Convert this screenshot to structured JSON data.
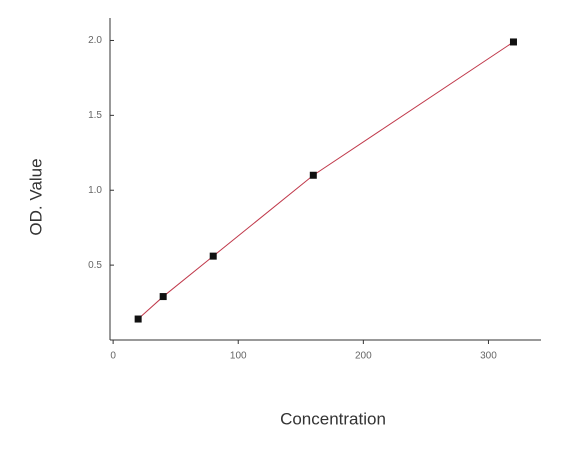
{
  "chart_data": {
    "type": "line",
    "xlabel": "Concentration",
    "ylabel": "OD. Value",
    "x": [
      20,
      40,
      80,
      160,
      320
    ],
    "series": [
      {
        "values": [
          0.14,
          0.29,
          0.56,
          1.1,
          1.99
        ],
        "color": "#c0394b",
        "marker_color": "#111111"
      }
    ],
    "xlim": [
      -2.5,
      342
    ],
    "xticks": [
      0,
      100,
      200,
      300
    ],
    "ylim": [
      0,
      2.15
    ],
    "yticks": [
      0.5,
      {
        "value": 1,
        "label": "1.0"
      },
      1.5,
      {
        "value": 2,
        "label": "2.0"
      }
    ]
  }
}
